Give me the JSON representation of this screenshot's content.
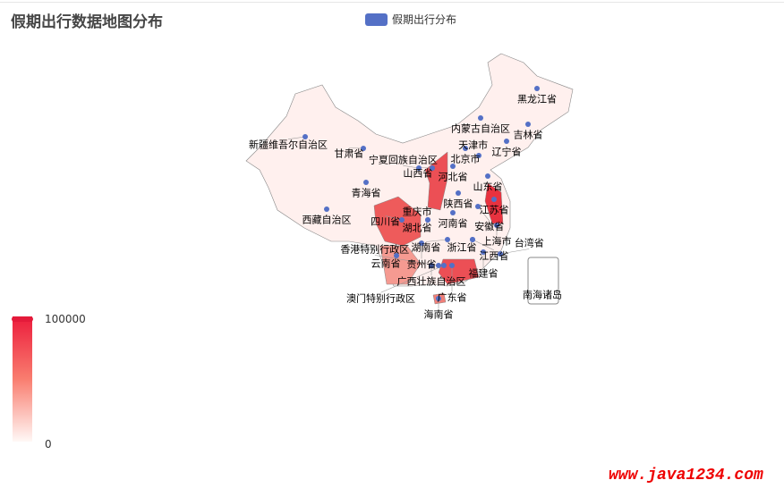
{
  "title": "假期出行数据地图分布",
  "legend": {
    "series_name": "假期出行分布",
    "color": "#5470c6"
  },
  "visual_map": {
    "max": "100000",
    "min": "0",
    "colors": [
      "#fff8f6",
      "#f97d6f",
      "#ec1c3c"
    ]
  },
  "watermark": "www.java1234.com",
  "chart_data": {
    "type": "map",
    "map": "china",
    "regions": [
      "黑龙江省",
      "吉林省",
      "辽宁省",
      "内蒙古自治区",
      "北京市",
      "天津市",
      "河北省",
      "山西省",
      "宁夏回族自治区",
      "甘肃省",
      "新疆维吾尔自治区",
      "青海省",
      "西藏自治区",
      "陕西省",
      "山东省",
      "河南省",
      "江苏省",
      "安徽省",
      "湖北省",
      "上海市",
      "四川省",
      "重庆市",
      "浙江省",
      "湖南省",
      "江西省",
      "贵州省",
      "云南省",
      "福建省",
      "台湾省",
      "广西壮族自治区",
      "广东省",
      "香港特别行政区",
      "澳门特别行政区",
      "海南省",
      "南海诸岛"
    ]
  }
}
